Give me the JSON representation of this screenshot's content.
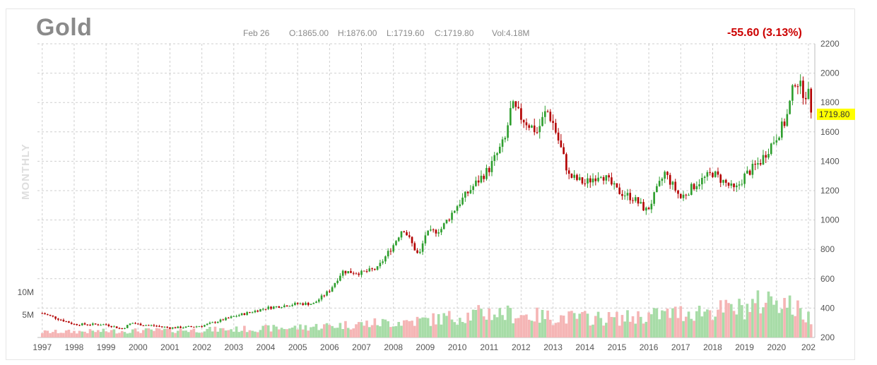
{
  "header": {
    "title": "Gold",
    "date": "Feb 26",
    "open": "O:1865.00",
    "high": "H:1876.00",
    "low": "L:1719.60",
    "close": "C:1719.80",
    "volume": "Vol:4.18M",
    "change": "-55.60 (3.13%)",
    "period": "MONTHLY"
  },
  "colors": {
    "up": "#2e9e2e",
    "down": "#b30000",
    "up_volume": "#a7dca7",
    "down_volume": "#f5b5b5",
    "last_price_badge": "#ffff00",
    "change_text": "#cc0000",
    "grid": "#cfcfcf"
  },
  "chart_data": {
    "type": "candlestick",
    "title": "Gold",
    "interval": "monthly",
    "y_axis": {
      "side": "right",
      "ticks": [
        200,
        400,
        600,
        800,
        1000,
        1200,
        1400,
        1600,
        1800,
        2000,
        2200
      ],
      "ylim": [
        200,
        2200
      ]
    },
    "volume_axis": {
      "side": "left",
      "ticks": [
        "5M",
        "10M"
      ]
    },
    "x_ticks": [
      "1997",
      "1998",
      "1999",
      "2000",
      "2001",
      "2002",
      "2003",
      "2004",
      "2005",
      "2006",
      "2007",
      "2008",
      "2009",
      "2010",
      "2011",
      "2012",
      "2013",
      "2014",
      "2015",
      "2016",
      "2017",
      "2018",
      "2019",
      "2020",
      "202"
    ],
    "last_price": {
      "value": 1719.8,
      "label": "1719.80"
    },
    "grid": true,
    "close_anchors": [
      [
        1997.0,
        365
      ],
      [
        1998.0,
        290
      ],
      [
        1999.0,
        288
      ],
      [
        1999.5,
        258
      ],
      [
        1999.8,
        300
      ],
      [
        2000.0,
        290
      ],
      [
        2000.5,
        280
      ],
      [
        2001.0,
        266
      ],
      [
        2001.5,
        270
      ],
      [
        2002.0,
        279
      ],
      [
        2002.5,
        310
      ],
      [
        2003.0,
        343
      ],
      [
        2004.0,
        400
      ],
      [
        2005.0,
        430
      ],
      [
        2005.5,
        430
      ],
      [
        2006.0,
        520
      ],
      [
        2006.4,
        650
      ],
      [
        2007.0,
        640
      ],
      [
        2007.5,
        670
      ],
      [
        2008.0,
        830
      ],
      [
        2008.3,
        950
      ],
      [
        2008.8,
        750
      ],
      [
        2009.0,
        900
      ],
      [
        2009.5,
        940
      ],
      [
        2010.0,
        1100
      ],
      [
        2010.5,
        1230
      ],
      [
        2011.0,
        1350
      ],
      [
        2011.5,
        1550
      ],
      [
        2011.7,
        1780
      ],
      [
        2012.0,
        1700
      ],
      [
        2012.5,
        1600
      ],
      [
        2012.8,
        1750
      ],
      [
        2013.0,
        1660
      ],
      [
        2013.3,
        1450
      ],
      [
        2013.5,
        1300
      ],
      [
        2014.0,
        1250
      ],
      [
        2014.5,
        1320
      ],
      [
        2015.0,
        1200
      ],
      [
        2015.5,
        1150
      ],
      [
        2015.95,
        1060
      ],
      [
        2016.5,
        1320
      ],
      [
        2017.0,
        1150
      ],
      [
        2017.5,
        1250
      ],
      [
        2018.0,
        1320
      ],
      [
        2018.7,
        1200
      ],
      [
        2019.0,
        1300
      ],
      [
        2019.5,
        1400
      ],
      [
        2020.0,
        1570
      ],
      [
        2020.3,
        1680
      ],
      [
        2020.6,
        1970
      ],
      [
        2020.8,
        1880
      ],
      [
        2021.0,
        1850
      ],
      [
        2021.12,
        1720
      ]
    ],
    "volume_anchors_millions": [
      [
        1997.0,
        1.2
      ],
      [
        2000.0,
        1.5
      ],
      [
        2003.0,
        1.8
      ],
      [
        2005.0,
        2.2
      ],
      [
        2007.0,
        3.0
      ],
      [
        2009.0,
        3.8
      ],
      [
        2011.0,
        5.5
      ],
      [
        2012.0,
        5.0
      ],
      [
        2013.0,
        4.5
      ],
      [
        2015.0,
        4.2
      ],
      [
        2017.0,
        5.5
      ],
      [
        2019.0,
        6.5
      ],
      [
        2020.0,
        9.0
      ],
      [
        2021.0,
        4.5
      ]
    ]
  }
}
